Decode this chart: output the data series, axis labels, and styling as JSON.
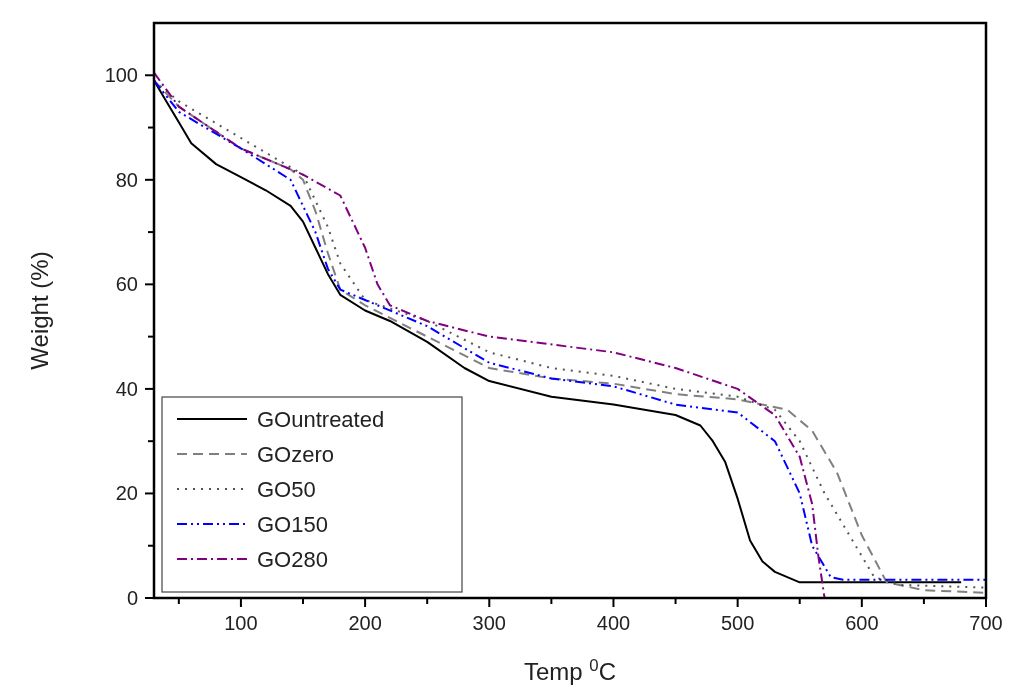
{
  "chart_data": {
    "type": "line",
    "xlabel": "Temp $^{0}$C",
    "ylabel": "Weight (%)",
    "xlim": [
      30,
      700
    ],
    "ylim": [
      0,
      110
    ],
    "xticks": [
      {
        "value": 50,
        "label": null
      },
      100,
      {
        "value": 150,
        "label": null
      },
      200,
      {
        "value": 250,
        "label": null
      },
      300,
      {
        "value": 350,
        "label": null
      },
      400,
      {
        "value": 450,
        "label": null
      },
      500,
      {
        "value": 550,
        "label": null
      },
      600,
      {
        "value": 650,
        "label": null
      },
      700
    ],
    "yticks": [
      0,
      {
        "value": 10,
        "label": null
      },
      20,
      {
        "value": 30,
        "label": null
      },
      40,
      {
        "value": 50,
        "label": null
      },
      60,
      {
        "value": 70,
        "label": null
      },
      80,
      {
        "value": 90,
        "label": null
      },
      100
    ],
    "grid": false,
    "legend": "bottom left",
    "marker": "none",
    "series": [
      {
        "name": "GOuntreated",
        "color": "#000000",
        "line_style": "solid",
        "x": [
          30,
          40,
          50,
          60,
          80,
          100,
          120,
          140,
          150,
          160,
          170,
          180,
          200,
          220,
          250,
          280,
          300,
          350,
          400,
          450,
          470,
          480,
          490,
          500,
          510,
          520,
          530,
          550,
          600,
          650,
          680
        ],
        "values": [
          99,
          95,
          91,
          87,
          83,
          80.5,
          78,
          75,
          72,
          67,
          62,
          58,
          55,
          53,
          49,
          44,
          41.5,
          38.5,
          37,
          35,
          33,
          30,
          26,
          19,
          11,
          7,
          5,
          3,
          3,
          3,
          3
        ]
      },
      {
        "name": "GOzero",
        "color": "#808080",
        "line_style": "dashed",
        "x": [
          30,
          50,
          100,
          140,
          150,
          160,
          170,
          180,
          200,
          250,
          300,
          350,
          400,
          450,
          500,
          540,
          560,
          580,
          600,
          620,
          650,
          700
        ],
        "values": [
          99,
          94,
          86,
          82,
          80,
          74,
          66,
          59,
          56,
          50,
          44,
          42,
          41,
          39,
          38,
          36,
          32,
          24,
          12,
          3,
          1.5,
          1
        ]
      },
      {
        "name": "GO50",
        "color": "#555555",
        "line_style": "dotted",
        "x": [
          30,
          50,
          100,
          150,
          170,
          180,
          200,
          250,
          300,
          350,
          400,
          450,
          500,
          530,
          550,
          570,
          590,
          610,
          630,
          700
        ],
        "values": [
          99,
          95,
          88,
          81,
          71,
          64,
          57,
          53,
          47,
          44,
          42.5,
          40,
          38.5,
          36,
          30,
          20,
          12,
          4,
          2.5,
          2
        ]
      },
      {
        "name": "GO150",
        "color": "#0000ff",
        "line_style": "dashdotdot",
        "x": [
          30,
          50,
          100,
          140,
          160,
          170,
          180,
          200,
          250,
          300,
          350,
          400,
          450,
          500,
          530,
          550,
          560,
          575,
          585,
          700
        ],
        "values": [
          99,
          93,
          86,
          80,
          70,
          63,
          59,
          57,
          52,
          45,
          42,
          40.5,
          37,
          35.5,
          30,
          20,
          10,
          4,
          3.5,
          3.5
        ]
      },
      {
        "name": "GO280",
        "color": "#800080",
        "line_style": "dashdot",
        "x": [
          30,
          50,
          100,
          150,
          180,
          200,
          210,
          220,
          250,
          300,
          400,
          450,
          500,
          530,
          550,
          560,
          565,
          570
        ],
        "values": [
          100.5,
          94,
          86,
          81,
          77,
          67,
          60,
          56,
          53,
          50,
          47,
          44,
          40,
          35,
          27,
          18,
          8,
          0
        ]
      }
    ]
  }
}
